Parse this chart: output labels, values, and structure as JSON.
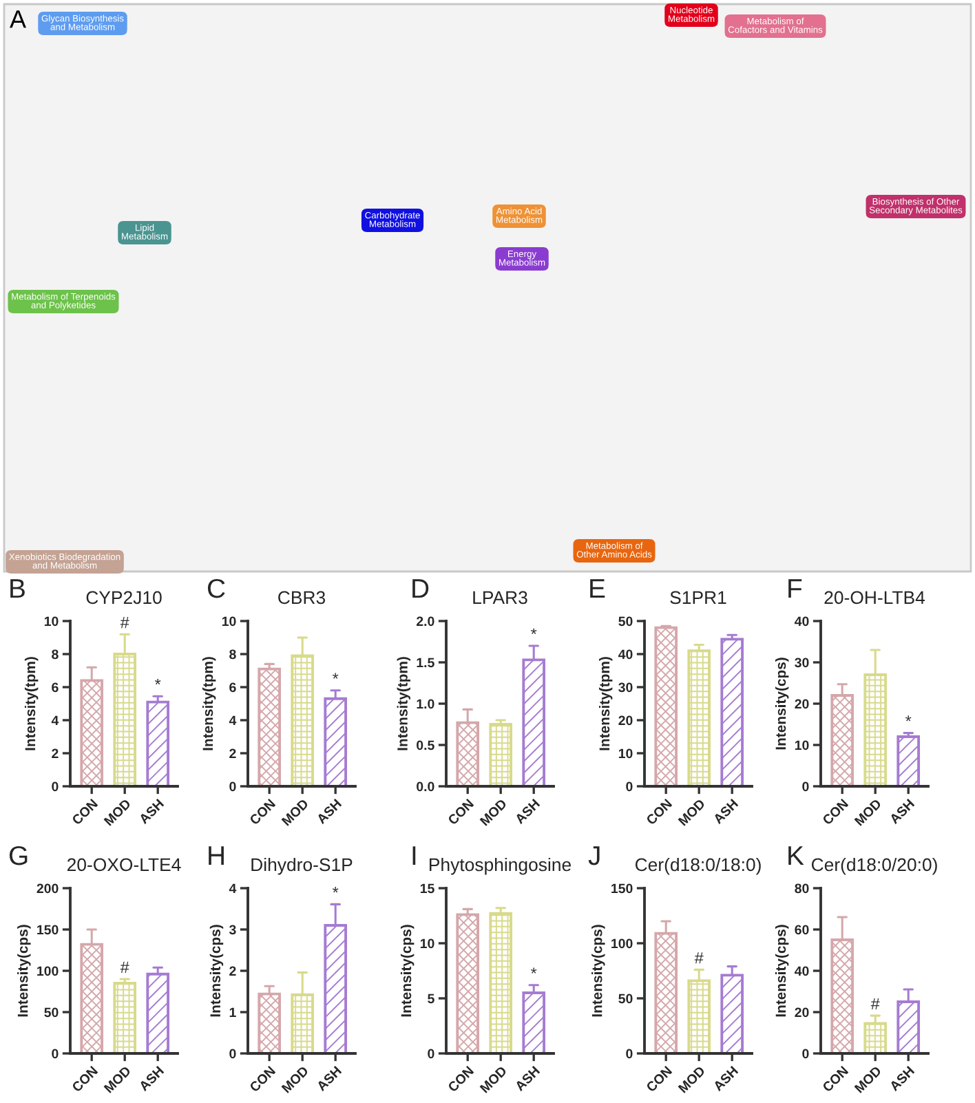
{
  "chart_data": [
    {
      "type": "other",
      "annotations": [
        "A"
      ],
      "categories": [
        "Nucleotide Metabolism",
        "Glycan Biosynthesis and Metabolism",
        "Metabolism of Cofactors and Vitamins",
        "Biosynthesis of Other Secondary Metabolites",
        "Amino Acid Metabolism",
        "Carbohydrate Metabolism",
        "Lipid Metabolism",
        "Energy Metabolism",
        "Metabolism of Terpenoids and Polyketides",
        "Metabolism of Other Amino Acids",
        "Xenobiotics Biodegradation and Metabolism"
      ],
      "colors": [
        "#e3001b",
        "#5e9cf0",
        "#e2708e",
        "#c0306a",
        "#ee9235",
        "#1010e0",
        "#4a9491",
        "#8a3cd0",
        "#6cc24a",
        "#e8660f",
        "#c4a394"
      ]
    },
    {
      "type": "bar",
      "title": "CYP2J10",
      "ylabel": "Intensity(tpm)",
      "categories": [
        "CON",
        "MOD",
        "ASH"
      ],
      "values": [
        6.4,
        8.0,
        5.1
      ],
      "colors": [
        "#d5a7aa",
        "#d8da8b",
        "#a57bd2"
      ],
      "errors": [
        [
          6.4,
          7.2
        ],
        [
          8.0,
          9.2
        ],
        [
          5.1,
          5.45
        ]
      ],
      "ylim": [
        0,
        10
      ],
      "yticks": [
        0,
        2,
        4,
        6,
        8,
        10
      ],
      "annotations": [
        "B",
        {
          "text": "#",
          "x": "MOD",
          "y": 9.2
        },
        {
          "text": "*",
          "x": "ASH",
          "y": 5.45
        }
      ]
    },
    {
      "type": "bar",
      "title": "CBR3",
      "ylabel": "Intensity(tpm)",
      "categories": [
        "CON",
        "MOD",
        "ASH"
      ],
      "values": [
        7.1,
        7.9,
        5.3
      ],
      "colors": [
        "#d5a7aa",
        "#d8da8b",
        "#a57bd2"
      ],
      "errors": [
        [
          7.1,
          7.4
        ],
        [
          7.9,
          9.0
        ],
        [
          5.3,
          5.8
        ]
      ],
      "ylim": [
        0,
        10
      ],
      "yticks": [
        0,
        2,
        4,
        6,
        8,
        10
      ],
      "annotations": [
        "C",
        {
          "text": "*",
          "x": "ASH",
          "y": 5.8
        }
      ]
    },
    {
      "type": "bar",
      "title": "LPAR3",
      "ylabel": "Intensity(tpm)",
      "categories": [
        "CON",
        "MOD",
        "ASH"
      ],
      "values": [
        0.77,
        0.75,
        1.53
      ],
      "colors": [
        "#d5a7aa",
        "#d8da8b",
        "#a57bd2"
      ],
      "errors": [
        [
          0.77,
          0.93
        ],
        [
          0.75,
          0.8
        ],
        [
          1.53,
          1.7
        ]
      ],
      "ylim": [
        0,
        2
      ],
      "yticks": [
        {
          "value": 0,
          "label": "0.0"
        },
        0.5,
        {
          "value": 1,
          "label": "1.0"
        },
        1.5,
        {
          "value": 2,
          "label": "2.0"
        }
      ],
      "annotations": [
        "D",
        {
          "text": "*",
          "x": "ASH",
          "y": 1.7
        }
      ]
    },
    {
      "type": "bar",
      "title": "S1PR1",
      "ylabel": "Intensity(tpm)",
      "categories": [
        "CON",
        "MOD",
        "ASH"
      ],
      "values": [
        48,
        41,
        44.5
      ],
      "colors": [
        "#d5a7aa",
        "#d8da8b",
        "#a57bd2"
      ],
      "errors": [
        [
          48,
          48.5
        ],
        [
          41,
          42.8
        ],
        [
          44.5,
          45.8
        ]
      ],
      "ylim": [
        0,
        50
      ],
      "yticks": [
        0,
        10,
        20,
        30,
        40,
        50
      ],
      "annotations": [
        "E"
      ]
    },
    {
      "type": "bar",
      "title": "20-OH-LTB4",
      "ylabel": "Intensity(cps)",
      "categories": [
        "CON",
        "MOD",
        "ASH"
      ],
      "values": [
        22,
        27,
        12
      ],
      "colors": [
        "#d5a7aa",
        "#d8da8b",
        "#a57bd2"
      ],
      "errors": [
        [
          22,
          24.7
        ],
        [
          27,
          33
        ],
        [
          12,
          12.9
        ]
      ],
      "ylim": [
        0,
        40
      ],
      "yticks": [
        0,
        10,
        20,
        30,
        40
      ],
      "annotations": [
        "F",
        {
          "text": "*",
          "x": "ASH",
          "y": 12.9
        }
      ]
    },
    {
      "type": "bar",
      "title": "20-OXO-LTE4",
      "ylabel": "Intensity(cps)",
      "categories": [
        "CON",
        "MOD",
        "ASH"
      ],
      "values": [
        132,
        85,
        96
      ],
      "colors": [
        "#d5a7aa",
        "#d8da8b",
        "#a57bd2"
      ],
      "errors": [
        [
          132,
          150
        ],
        [
          85,
          90
        ],
        [
          96,
          104
        ]
      ],
      "ylim": [
        0,
        200
      ],
      "yticks": [
        0,
        50,
        100,
        150,
        200
      ],
      "annotations": [
        "G",
        {
          "text": "#",
          "x": "MOD",
          "y": 90
        }
      ]
    },
    {
      "type": "bar",
      "title": "Dihydro-S1P",
      "ylabel": "Intensity(cps)",
      "categories": [
        "CON",
        "MOD",
        "ASH"
      ],
      "values": [
        1.44,
        1.42,
        3.1
      ],
      "colors": [
        "#d5a7aa",
        "#d8da8b",
        "#a57bd2"
      ],
      "errors": [
        [
          1.44,
          1.63
        ],
        [
          1.42,
          1.96
        ],
        [
          3.1,
          3.61
        ]
      ],
      "ylim": [
        0,
        4
      ],
      "yticks": [
        0,
        1,
        2,
        3,
        4
      ],
      "annotations": [
        "H",
        {
          "text": "*",
          "x": "ASH",
          "y": 3.61
        }
      ]
    },
    {
      "type": "bar",
      "title": "Phytosphingosine",
      "ylabel": "Intensity(cps)",
      "categories": [
        "CON",
        "MOD",
        "ASH"
      ],
      "values": [
        12.6,
        12.7,
        5.5
      ],
      "colors": [
        "#d5a7aa",
        "#d8da8b",
        "#a57bd2"
      ],
      "errors": [
        [
          12.6,
          13.1
        ],
        [
          12.7,
          13.2
        ],
        [
          5.5,
          6.2
        ]
      ],
      "ylim": [
        0,
        15
      ],
      "yticks": [
        0,
        5,
        10,
        15
      ],
      "annotations": [
        "I",
        {
          "text": "*",
          "x": "ASH",
          "y": 6.2
        }
      ]
    },
    {
      "type": "bar",
      "title": "Cer(d18:0/18:0)",
      "ylabel": "Intensity(cps)",
      "categories": [
        "CON",
        "MOD",
        "ASH"
      ],
      "values": [
        109,
        66,
        71
      ],
      "colors": [
        "#d5a7aa",
        "#d8da8b",
        "#a57bd2"
      ],
      "errors": [
        [
          109,
          120
        ],
        [
          66,
          76
        ],
        [
          71,
          79
        ]
      ],
      "ylim": [
        0,
        150
      ],
      "yticks": [
        0,
        50,
        100,
        150
      ],
      "annotations": [
        "J",
        {
          "text": "#",
          "x": "MOD",
          "y": 76
        }
      ]
    },
    {
      "type": "bar",
      "title": "Cer(d18:0/20:0)",
      "ylabel": "Intensity(cps)",
      "categories": [
        "CON",
        "MOD",
        "ASH"
      ],
      "values": [
        55,
        14.5,
        25
      ],
      "colors": [
        "#d5a7aa",
        "#d8da8b",
        "#a57bd2"
      ],
      "errors": [
        [
          55,
          66
        ],
        [
          14.5,
          18.3
        ],
        [
          25,
          31
        ]
      ],
      "ylim": [
        0,
        80
      ],
      "yticks": [
        0,
        20,
        40,
        60,
        80
      ],
      "annotations": [
        "K",
        {
          "text": "#",
          "x": "MOD",
          "y": 18.3
        }
      ]
    }
  ]
}
